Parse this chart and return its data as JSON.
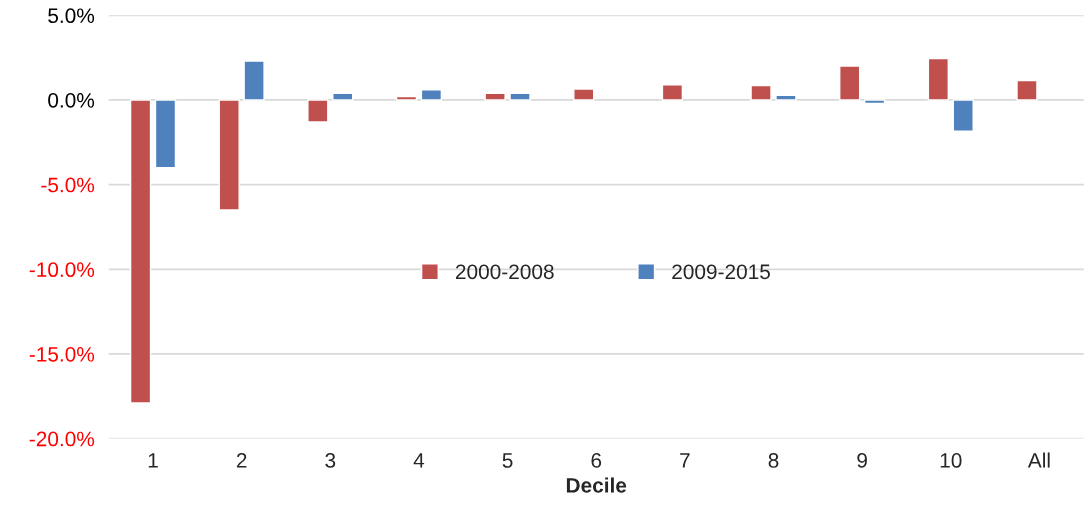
{
  "chart_data": {
    "type": "bar",
    "xlabel": "Decile",
    "categories": [
      "1",
      "2",
      "3",
      "4",
      "5",
      "6",
      "7",
      "8",
      "9",
      "10",
      "All"
    ],
    "series": [
      {
        "name": "2000-2008",
        "color": "#c0504d",
        "values": [
          -17.9,
          -6.5,
          -1.3,
          0.2,
          0.4,
          0.65,
          0.9,
          0.85,
          2.0,
          2.45,
          1.15
        ]
      },
      {
        "name": "2009-2015",
        "color": "#4f81bd",
        "values": [
          -4.0,
          2.3,
          0.4,
          0.6,
          0.4,
          null,
          null,
          0.27,
          -0.2,
          -1.85,
          null
        ]
      }
    ],
    "ylim": [
      -20,
      5
    ],
    "yticks": [
      {
        "value": -20,
        "label": "-20.0%"
      },
      {
        "value": -15,
        "label": "-15.0%"
      },
      {
        "value": -10,
        "label": "-10.0%"
      },
      {
        "value": -5,
        "label": "-5.0%"
      },
      {
        "value": 0,
        "label": "0.0%"
      },
      {
        "value": 5,
        "label": "5.0%"
      }
    ],
    "grid": "y",
    "legend": "center"
  }
}
